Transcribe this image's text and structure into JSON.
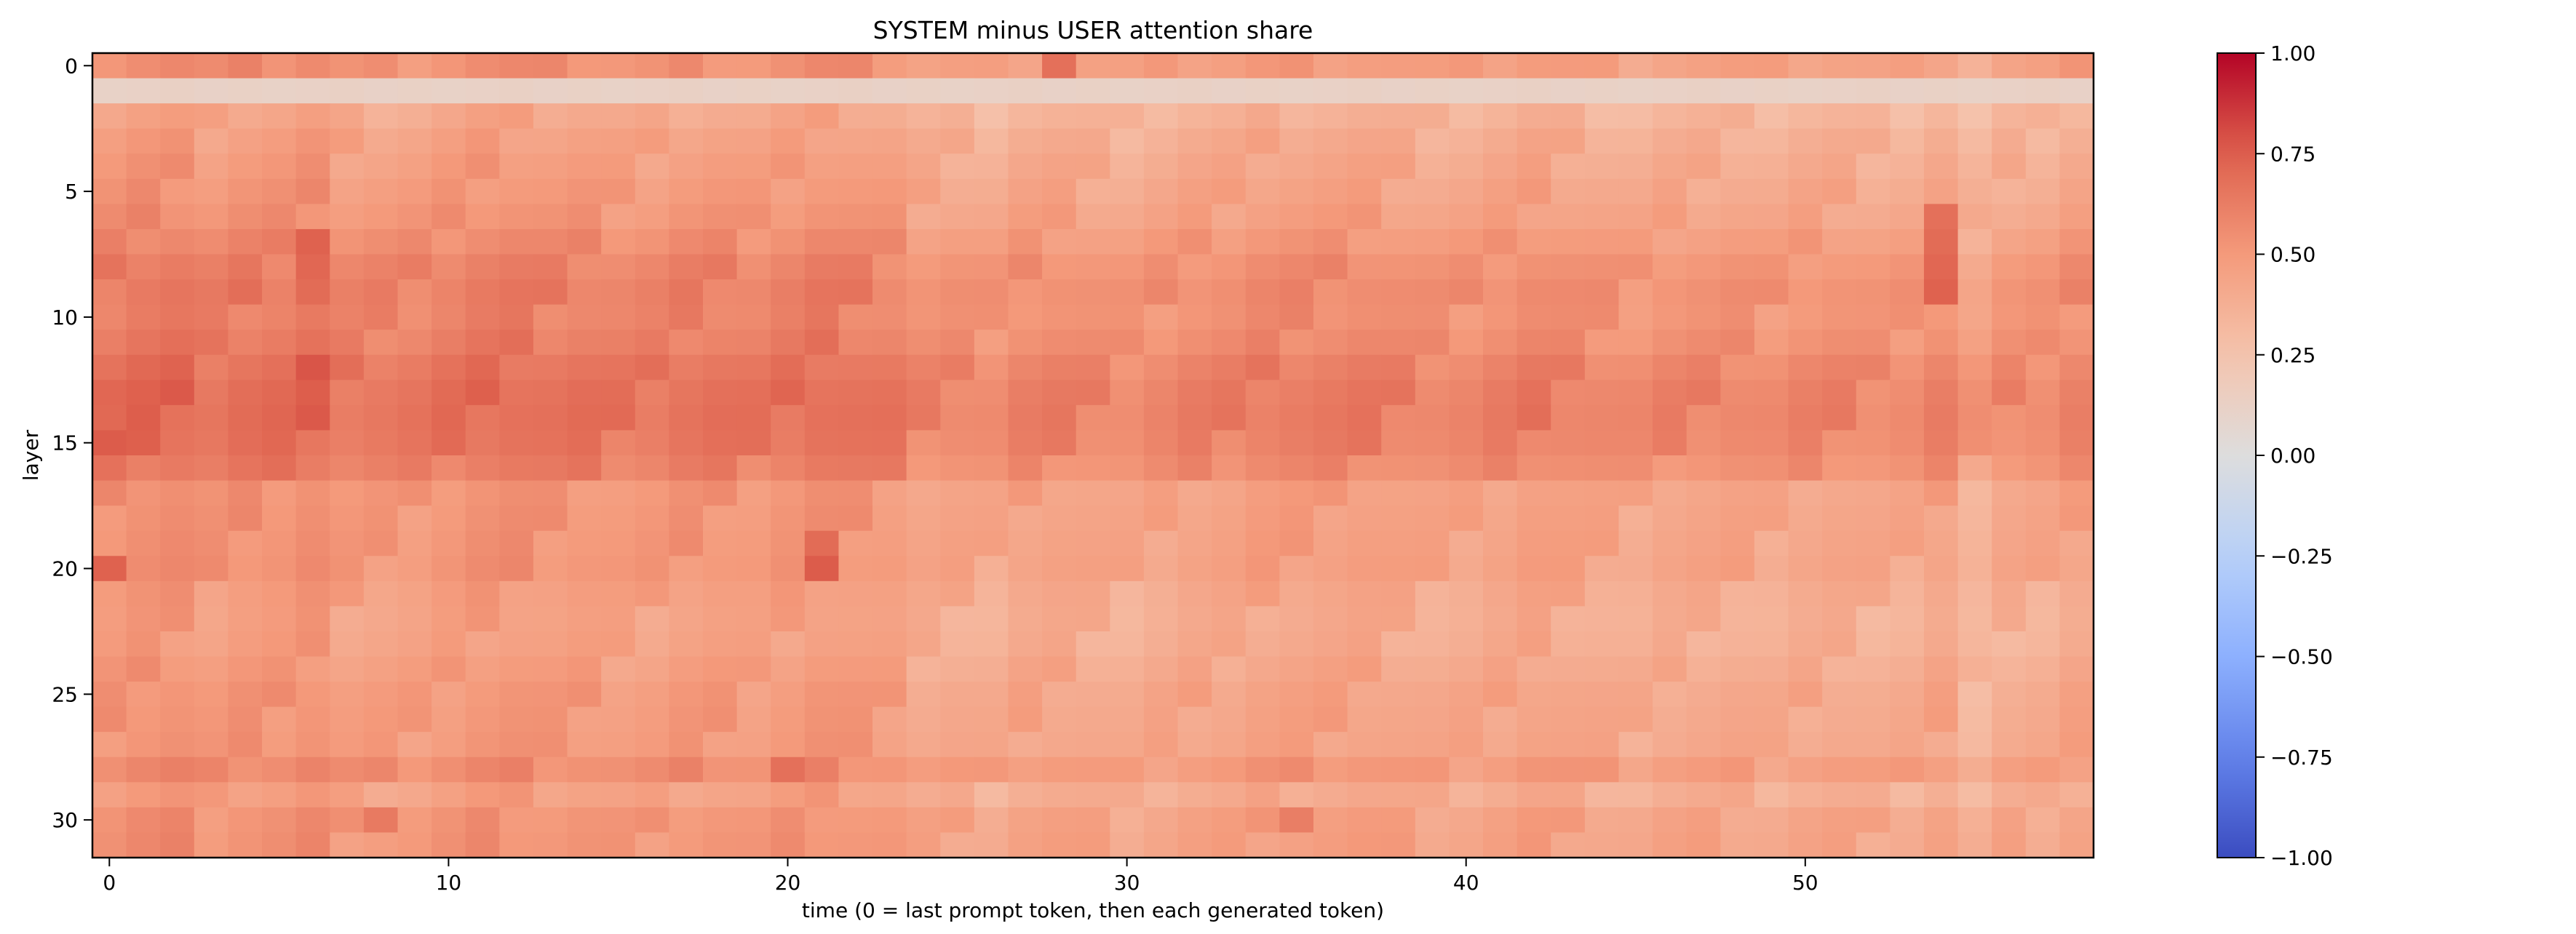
{
  "chart_data": {
    "type": "heatmap",
    "title": "SYSTEM minus USER attention share",
    "xlabel": "time (0 = last prompt token, then each generated token)",
    "ylabel": "layer",
    "x": {
      "count": 59,
      "range": [
        -0.5,
        58.5
      ],
      "ticks": [
        0,
        10,
        20,
        30,
        40,
        50
      ]
    },
    "y": {
      "count": 32,
      "range": [
        -0.5,
        31.5
      ],
      "ticks": [
        0,
        5,
        10,
        15,
        20,
        25,
        30
      ],
      "inverted": true
    },
    "colormap": "coolwarm",
    "vmin": -1.0,
    "vmax": 1.0,
    "colorbar": {
      "ticks": [
        1.0,
        0.75,
        0.5,
        0.25,
        0.0,
        -0.25,
        -0.5,
        -0.75,
        -1.0
      ],
      "tick_labels": [
        "1.00",
        "0.75",
        "0.50",
        "0.25",
        "0.00",
        "−0.25",
        "−0.50",
        "−0.75",
        "−1.00"
      ]
    },
    "row_values": [
      0.52,
      0.12,
      0.4,
      0.44,
      0.46,
      0.48,
      0.5,
      0.54,
      0.58,
      0.6,
      0.58,
      0.6,
      0.64,
      0.66,
      0.66,
      0.64,
      0.6,
      0.5,
      0.5,
      0.5,
      0.5,
      0.46,
      0.44,
      0.44,
      0.46,
      0.48,
      0.48,
      0.48,
      0.54,
      0.44,
      0.5,
      0.5
    ],
    "col_offsets": [
      0.04,
      0.06,
      0.06,
      0.02,
      0.04,
      0.04,
      0.06,
      0.0,
      0.0,
      0.0,
      0.02,
      0.04,
      0.04,
      0.02,
      0.02,
      0.0,
      0.0,
      0.02,
      0.02,
      0.0,
      0.02,
      0.04,
      0.02,
      0.0,
      -0.06,
      -0.06,
      -0.08,
      -0.04,
      -0.04,
      -0.06,
      -0.08,
      -0.06,
      -0.04,
      -0.04,
      -0.02,
      -0.02,
      -0.02,
      -0.02,
      -0.04,
      -0.06,
      -0.06,
      -0.04,
      -0.02,
      -0.04,
      -0.06,
      -0.08,
      -0.06,
      -0.06,
      -0.06,
      -0.08,
      -0.06,
      -0.06,
      -0.08,
      -0.08,
      -0.04,
      -0.14,
      -0.08,
      -0.08,
      -0.04
    ],
    "cell_overrides": [
      {
        "row": 0,
        "col": 28,
        "value": 0.68
      },
      {
        "row": 7,
        "col": 6,
        "value": 0.74
      },
      {
        "row": 8,
        "col": 6,
        "value": 0.72
      },
      {
        "row": 9,
        "col": 6,
        "value": 0.7
      },
      {
        "row": 12,
        "col": 6,
        "value": 0.78
      },
      {
        "row": 13,
        "col": 0,
        "value": 0.72
      },
      {
        "row": 15,
        "col": 0,
        "value": 0.76
      },
      {
        "row": 20,
        "col": 0,
        "value": 0.74
      },
      {
        "row": 20,
        "col": 21,
        "value": 0.76
      },
      {
        "row": 19,
        "col": 21,
        "value": 0.7
      },
      {
        "row": 6,
        "col": 54,
        "value": 0.68
      },
      {
        "row": 7,
        "col": 54,
        "value": 0.7
      },
      {
        "row": 8,
        "col": 54,
        "value": 0.72
      },
      {
        "row": 9,
        "col": 54,
        "value": 0.74
      },
      {
        "row": 28,
        "col": 20,
        "value": 0.68
      },
      {
        "row": 30,
        "col": 8,
        "value": 0.64
      },
      {
        "row": 30,
        "col": 35,
        "value": 0.62
      }
    ]
  }
}
